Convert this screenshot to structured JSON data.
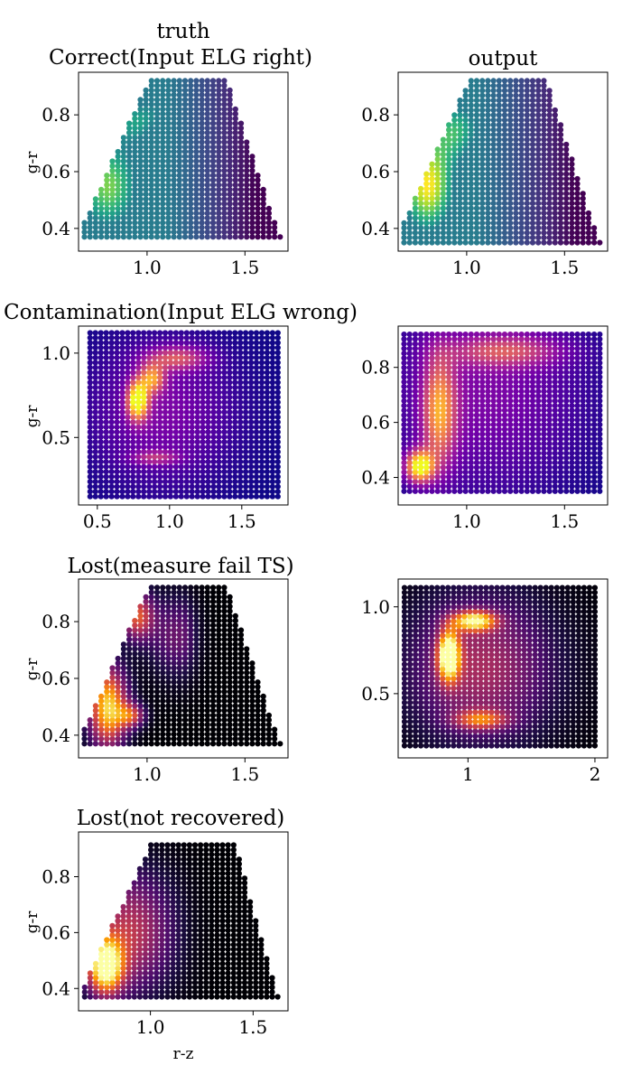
{
  "chart_data": [
    {
      "id": "p1",
      "type": "scatter",
      "colormap": "viridis",
      "shape": "trapezoid",
      "title_lines": [
        "truth",
        "Correct(Input ELG right)"
      ],
      "xlabel": "",
      "ylabel": "g-r",
      "xlim": [
        0.65,
        1.72
      ],
      "ylim": [
        0.32,
        0.95
      ],
      "xticks": [
        1.0,
        1.5
      ],
      "xtick_labels": [
        "1.0",
        "1.5"
      ],
      "yticks": [
        0.4,
        0.6,
        0.8
      ],
      "ytick_labels": [
        "0.4",
        "0.6",
        "0.8"
      ],
      "domain": {
        "x_range": [
          0.68,
          1.68
        ],
        "y_range": [
          0.37,
          0.92
        ],
        "left_edge": [
          [
            0.68,
            0.42
          ],
          [
            0.98,
            0.88
          ]
        ],
        "right_edge": [
          [
            1.42,
            0.9
          ],
          [
            1.68,
            0.37
          ]
        ]
      },
      "density_peaks": [
        {
          "x": 0.8,
          "y": 0.55,
          "sigma_x": 0.12,
          "sigma_y": 0.12,
          "weight": 0.8
        },
        {
          "x": 0.95,
          "y": 0.78,
          "sigma_x": 0.1,
          "sigma_y": 0.06,
          "weight": 0.5
        },
        {
          "x": 1.15,
          "y": 0.85,
          "sigma_x": 0.1,
          "sigma_y": 0.05,
          "weight": 0.35
        }
      ],
      "gradient": {
        "x_from": 1.1,
        "x_to": 1.55,
        "strength": 0.75
      }
    },
    {
      "id": "p2",
      "type": "scatter",
      "colormap": "viridis",
      "shape": "trapezoid",
      "title_lines": [
        "output"
      ],
      "xlabel": "",
      "ylabel": "",
      "xlim": [
        0.65,
        1.72
      ],
      "ylim": [
        0.32,
        0.95
      ],
      "xticks": [
        1.0,
        1.5
      ],
      "xtick_labels": [
        "1.0",
        "1.5"
      ],
      "yticks": [
        0.4,
        0.6,
        0.8
      ],
      "ytick_labels": [
        "0.4",
        "0.6",
        "0.8"
      ],
      "domain": {
        "x_range": [
          0.68,
          1.68
        ],
        "y_range": [
          0.35,
          0.92
        ],
        "left_edge": [
          [
            0.68,
            0.42
          ],
          [
            0.98,
            0.88
          ]
        ],
        "right_edge": [
          [
            1.42,
            0.9
          ],
          [
            1.68,
            0.35
          ]
        ]
      },
      "density_peaks": [
        {
          "x": 0.8,
          "y": 0.55,
          "sigma_x": 0.1,
          "sigma_y": 0.12,
          "weight": 1.0
        },
        {
          "x": 0.95,
          "y": 0.75,
          "sigma_x": 0.1,
          "sigma_y": 0.08,
          "weight": 0.6
        }
      ],
      "gradient": {
        "x_from": 1.05,
        "x_to": 1.55,
        "strength": 0.7
      }
    },
    {
      "id": "p3",
      "type": "scatter",
      "colormap": "plasma",
      "shape": "rectangle",
      "title_lines": [
        "Contamination(Input ELG wrong)"
      ],
      "xlabel": "",
      "ylabel": "g-r",
      "xlim": [
        0.37,
        1.82
      ],
      "ylim": [
        0.1,
        1.16
      ],
      "xticks": [
        0.5,
        1.0,
        1.5
      ],
      "xtick_labels": [
        "0.5",
        "1.0",
        "1.5"
      ],
      "yticks": [
        0.5,
        1.0
      ],
      "ytick_labels": [
        "0.5",
        "1.0"
      ],
      "domain": {
        "x_range": [
          0.45,
          1.75
        ],
        "y_range": [
          0.15,
          1.12
        ]
      },
      "density_peaks": [
        {
          "x": 0.78,
          "y": 0.72,
          "sigma_x": 0.05,
          "sigma_y": 0.08,
          "weight": 1.0
        },
        {
          "x": 0.88,
          "y": 0.85,
          "sigma_x": 0.06,
          "sigma_y": 0.06,
          "weight": 0.6
        },
        {
          "x": 1.05,
          "y": 0.97,
          "sigma_x": 0.15,
          "sigma_y": 0.05,
          "weight": 0.45
        },
        {
          "x": 0.9,
          "y": 0.38,
          "sigma_x": 0.12,
          "sigma_y": 0.03,
          "weight": 0.3
        },
        {
          "x": 0.95,
          "y": 0.65,
          "sigma_x": 0.35,
          "sigma_y": 0.3,
          "weight": 0.25
        }
      ]
    },
    {
      "id": "p4",
      "type": "scatter",
      "colormap": "plasma",
      "shape": "rectangle",
      "title_lines": [],
      "xlabel": "",
      "ylabel": "",
      "xlim": [
        0.65,
        1.72
      ],
      "ylim": [
        0.3,
        0.95
      ],
      "xticks": [
        1.0,
        1.5
      ],
      "xtick_labels": [
        "1.0",
        "1.5"
      ],
      "yticks": [
        0.4,
        0.6,
        0.8
      ],
      "ytick_labels": [
        "0.4",
        "0.6",
        "0.8"
      ],
      "domain": {
        "x_range": [
          0.68,
          1.68
        ],
        "y_range": [
          0.35,
          0.92
        ]
      },
      "density_peaks": [
        {
          "x": 0.76,
          "y": 0.44,
          "sigma_x": 0.05,
          "sigma_y": 0.04,
          "weight": 1.0
        },
        {
          "x": 0.86,
          "y": 0.64,
          "sigma_x": 0.06,
          "sigma_y": 0.14,
          "weight": 0.65
        },
        {
          "x": 1.2,
          "y": 0.86,
          "sigma_x": 0.2,
          "sigma_y": 0.04,
          "weight": 0.4
        },
        {
          "x": 1.1,
          "y": 0.7,
          "sigma_x": 0.35,
          "sigma_y": 0.25,
          "weight": 0.25
        }
      ]
    },
    {
      "id": "p5",
      "type": "scatter",
      "colormap": "inferno",
      "shape": "trapezoid",
      "title_lines": [
        "Lost(measure fail TS)"
      ],
      "xlabel": "",
      "ylabel": "g-r",
      "xlim": [
        0.65,
        1.72
      ],
      "ylim": [
        0.32,
        0.95
      ],
      "xticks": [
        1.0,
        1.5
      ],
      "xtick_labels": [
        "1.0",
        "1.5"
      ],
      "yticks": [
        0.4,
        0.6,
        0.8
      ],
      "ytick_labels": [
        "0.4",
        "0.6",
        "0.8"
      ],
      "domain": {
        "x_range": [
          0.68,
          1.68
        ],
        "y_range": [
          0.37,
          0.92
        ],
        "left_edge": [
          [
            0.68,
            0.42
          ],
          [
            0.98,
            0.88
          ]
        ],
        "right_edge": [
          [
            1.42,
            0.9
          ],
          [
            1.68,
            0.37
          ]
        ]
      },
      "density_peaks": [
        {
          "x": 0.8,
          "y": 0.5,
          "sigma_x": 0.07,
          "sigma_y": 0.1,
          "weight": 0.9
        },
        {
          "x": 0.95,
          "y": 0.82,
          "sigma_x": 0.06,
          "sigma_y": 0.06,
          "weight": 0.6
        },
        {
          "x": 0.92,
          "y": 0.47,
          "sigma_x": 0.05,
          "sigma_y": 0.03,
          "weight": 0.5
        },
        {
          "x": 1.15,
          "y": 0.75,
          "sigma_x": 0.1,
          "sigma_y": 0.1,
          "weight": 0.3
        }
      ],
      "gradient": {
        "x_from": 1.2,
        "x_to": 1.35,
        "strength": 1.0
      }
    },
    {
      "id": "p6",
      "type": "scatter",
      "colormap": "inferno",
      "shape": "rectangle",
      "title_lines": [],
      "xlabel": "",
      "ylabel": "",
      "xlim": [
        0.45,
        2.1
      ],
      "ylim": [
        0.13,
        1.16
      ],
      "xticks": [
        1,
        2
      ],
      "xtick_labels": [
        "1",
        "2"
      ],
      "yticks": [
        0.5,
        1.0
      ],
      "ytick_labels": [
        "0.5",
        "1.0"
      ],
      "domain": {
        "x_range": [
          0.5,
          2.0
        ],
        "y_range": [
          0.2,
          1.11
        ]
      },
      "density_peaks": [
        {
          "x": 0.85,
          "y": 0.72,
          "sigma_x": 0.06,
          "sigma_y": 0.1,
          "weight": 1.0
        },
        {
          "x": 1.05,
          "y": 0.92,
          "sigma_x": 0.12,
          "sigma_y": 0.04,
          "weight": 0.8
        },
        {
          "x": 1.1,
          "y": 0.35,
          "sigma_x": 0.15,
          "sigma_y": 0.04,
          "weight": 0.5
        },
        {
          "x": 1.1,
          "y": 0.65,
          "sigma_x": 0.4,
          "sigma_y": 0.3,
          "weight": 0.45
        }
      ]
    },
    {
      "id": "p7",
      "type": "scatter",
      "colormap": "inferno",
      "shape": "trapezoid",
      "title_lines": [
        "Lost(not recovered)"
      ],
      "xlabel": "r-z",
      "ylabel": "g-r",
      "xlim": [
        0.65,
        1.67
      ],
      "ylim": [
        0.32,
        0.96
      ],
      "xticks": [
        1.0,
        1.5
      ],
      "xtick_labels": [
        "1.0",
        "1.5"
      ],
      "yticks": [
        0.4,
        0.6,
        0.8
      ],
      "ytick_labels": [
        "0.4",
        "0.6",
        "0.8"
      ],
      "domain": {
        "x_range": [
          0.68,
          1.62
        ],
        "y_range": [
          0.37,
          0.93
        ],
        "left_edge": [
          [
            0.68,
            0.42
          ],
          [
            0.98,
            0.88
          ]
        ],
        "right_edge": [
          [
            1.42,
            0.9
          ],
          [
            1.62,
            0.37
          ]
        ]
      },
      "density_peaks": [
        {
          "x": 0.78,
          "y": 0.48,
          "sigma_x": 0.06,
          "sigma_y": 0.07,
          "weight": 1.0
        },
        {
          "x": 0.9,
          "y": 0.6,
          "sigma_x": 0.15,
          "sigma_y": 0.15,
          "weight": 0.5
        }
      ],
      "gradient": {
        "x_from": 1.15,
        "x_to": 1.4,
        "strength": 1.0
      }
    }
  ]
}
